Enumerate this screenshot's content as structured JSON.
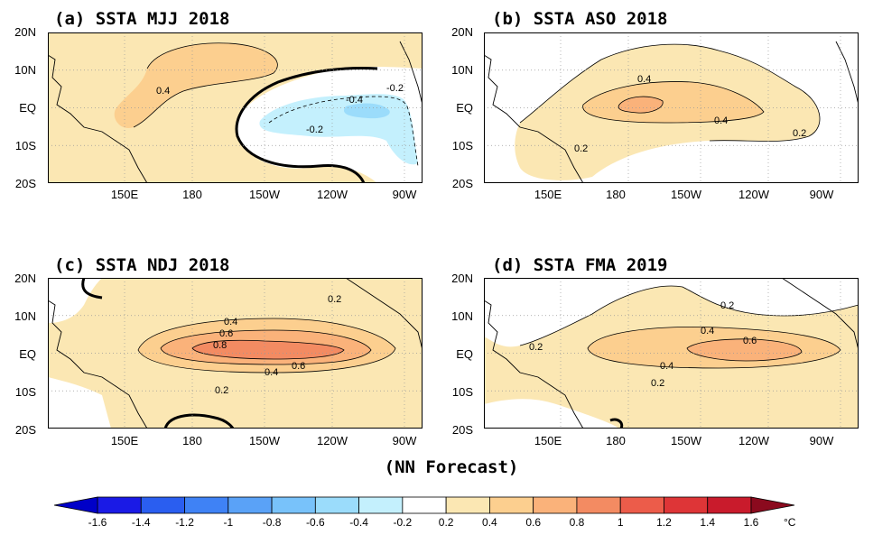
{
  "figure": {
    "footer": "(NN Forecast)",
    "unit": "°C",
    "colorbar": {
      "levels": [
        "-1.6",
        "-1.4",
        "-1.2",
        "-1",
        "-0.8",
        "-0.6",
        "-0.4",
        "-0.2",
        "0.2",
        "0.4",
        "0.6",
        "0.8",
        "1",
        "1.2",
        "1.4",
        "1.6"
      ],
      "colors": [
        "#1a1ae6",
        "#2a5ef0",
        "#3f82f5",
        "#5aa2f7",
        "#78c2fa",
        "#9bdcfb",
        "#c4f0fd",
        "#ffffff",
        "#fbe7b3",
        "#fccf8f",
        "#fab27a",
        "#f38b62",
        "#ec5c4a",
        "#de3537",
        "#c91b2c"
      ]
    },
    "lat_ticks": [
      "20N",
      "10N",
      "EQ",
      "10S",
      "20S"
    ],
    "lon_ticks": [
      "150E",
      "180",
      "150W",
      "120W",
      "90W"
    ],
    "colors": {
      "land": "#000000",
      "zero": "#000000"
    },
    "panels": [
      {
        "title": "(a) SSTA  MJJ 2018",
        "labels": [
          "0.4",
          "-0.2",
          "-0.4",
          "-0.2"
        ]
      },
      {
        "title": "(b) SSTA  ASO 2018",
        "labels": [
          "0.4",
          "0.4",
          "0.2",
          "0.2"
        ]
      },
      {
        "title": "(c) SSTA  NDJ 2018",
        "labels": [
          "0.2",
          "0.4",
          "0.6",
          "0.8",
          "0.4",
          "0.6",
          "0.2"
        ]
      },
      {
        "title": "(d) SSTA  FMA 2019",
        "labels": [
          "0.2",
          "0.2",
          "0.4",
          "0.6",
          "0.4",
          "0.2"
        ]
      }
    ]
  }
}
